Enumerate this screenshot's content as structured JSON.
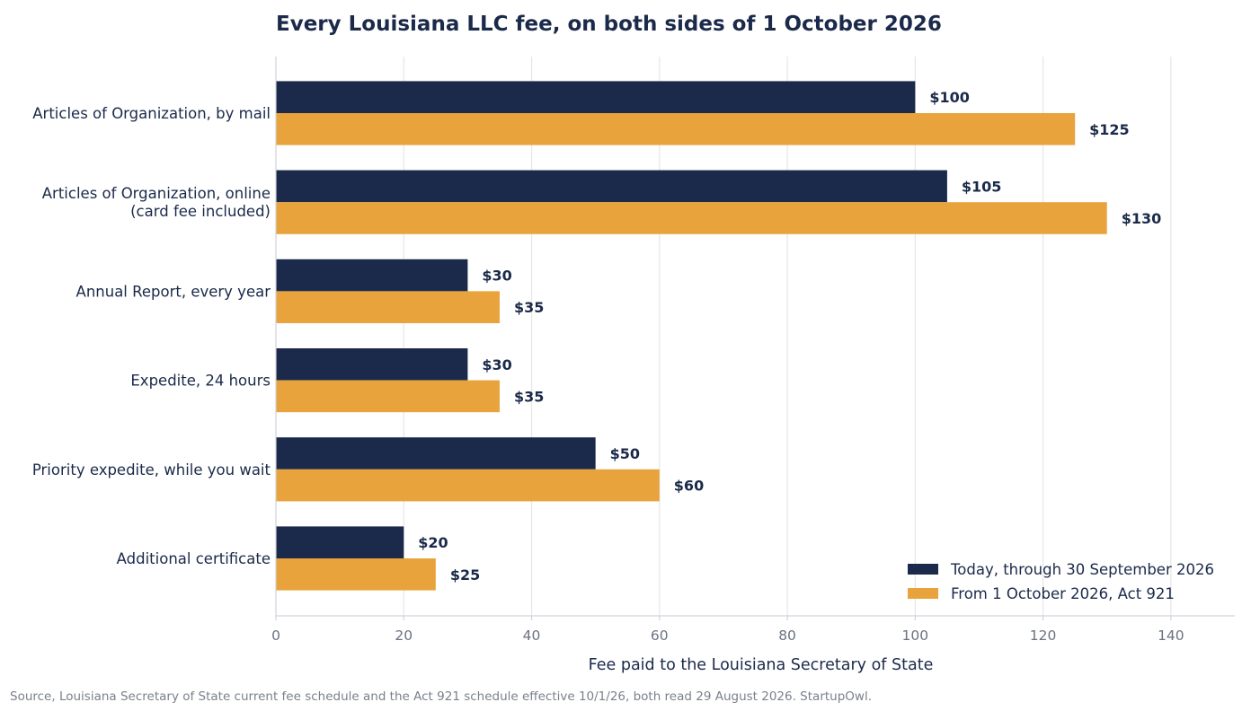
{
  "chart_data": {
    "type": "bar",
    "orientation": "horizontal",
    "title": "Every Louisiana LLC fee, on both sides of 1 October 2026",
    "xlabel": "Fee paid to the Louisiana Secretary of State",
    "ylabel": "",
    "xlim": [
      0,
      150
    ],
    "xticks": [
      0,
      20,
      40,
      60,
      80,
      100,
      120,
      140
    ],
    "grid": "vertical",
    "legend_position": "bottom-right",
    "categories": [
      [
        "Articles of Organization, by mail"
      ],
      [
        "Articles of Organization, online",
        "(card fee included)"
      ],
      [
        "Annual Report, every year"
      ],
      [
        "Expedite, 24 hours"
      ],
      [
        "Priority expedite, while you wait"
      ],
      [
        "Additional certificate"
      ]
    ],
    "series": [
      {
        "name": "Today, through 30 September 2026",
        "color": "#1b2a4a",
        "values": [
          100,
          105,
          30,
          30,
          50,
          20
        ],
        "labels": [
          "$100",
          "$105",
          "$30",
          "$30",
          "$50",
          "$20"
        ]
      },
      {
        "name": "From 1 October 2026, Act 921",
        "color": "#e8a33d",
        "values": [
          125,
          130,
          35,
          35,
          60,
          25
        ],
        "labels": [
          "$125",
          "$130",
          "$35",
          "$35",
          "$60",
          "$25"
        ]
      }
    ]
  },
  "footer": {
    "source": "Source, Louisiana Secretary of State current fee schedule and the Act 921 schedule effective 10/1/26, both read 29 August 2026. StartupOwl."
  },
  "colors": {
    "text": "#1b2a4a",
    "tick": "#6b7280",
    "grid": "#e6e6e6",
    "axis": "#cfd3da"
  }
}
